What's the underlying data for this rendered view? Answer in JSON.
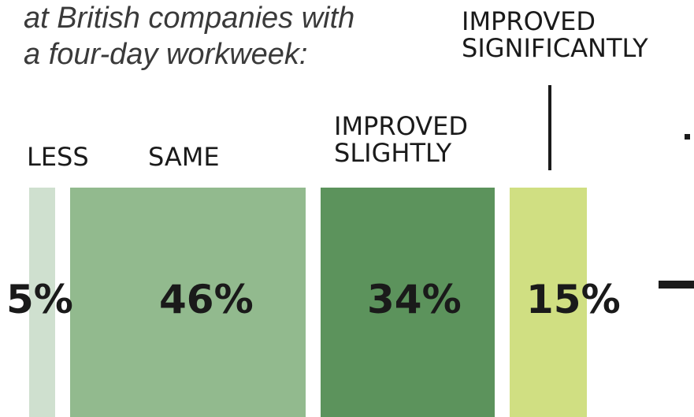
{
  "intro": {
    "line1": "at British companies with",
    "line2": "a four-day workweek:"
  },
  "categories": [
    {
      "label_lines": [
        "LESS"
      ],
      "value_text": "5%",
      "color": "#cfe0cf"
    },
    {
      "label_lines": [
        "SAME"
      ],
      "value_text": "46%",
      "color": "#92ba8e"
    },
    {
      "label_lines": [
        "IMPROVED",
        "SLIGHTLY"
      ],
      "value_text": "34%",
      "color": "#5c935c"
    },
    {
      "label_lines": [
        "IMPROVED",
        "SIGNIFICANTLY"
      ],
      "value_text": "15%",
      "color": "#d0df82"
    }
  ],
  "chart_data": {
    "type": "bar",
    "stacked": true,
    "orientation": "horizontal",
    "categories": [
      "LESS",
      "SAME",
      "IMPROVED SLIGHTLY",
      "IMPROVED SIGNIFICANTLY"
    ],
    "values": [
      5,
      46,
      34,
      15
    ],
    "value_labels": [
      "5%",
      "46%",
      "34%",
      "15%"
    ],
    "unit": "%",
    "title": "",
    "xlabel": "",
    "ylabel": "",
    "colors": [
      "#cfe0cf",
      "#92ba8e",
      "#5c935c",
      "#d0df82"
    ]
  }
}
